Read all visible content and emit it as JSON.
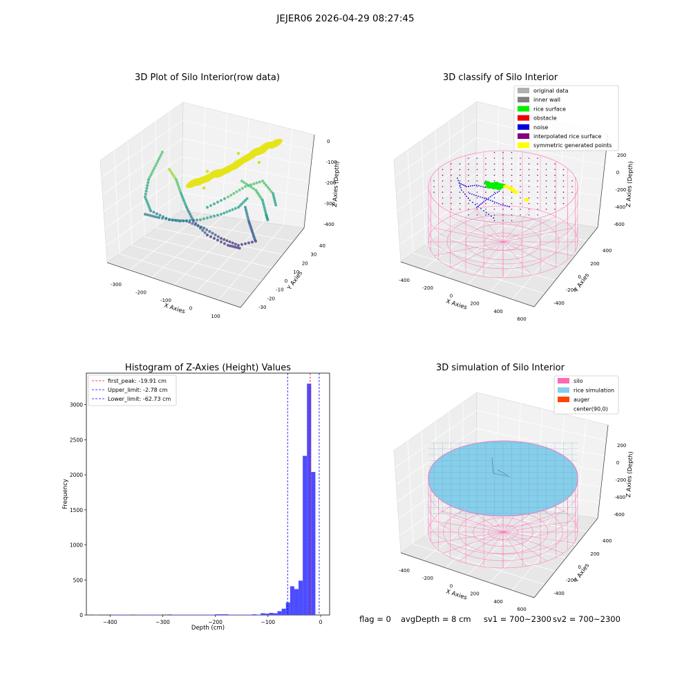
{
  "figure": {
    "suptitle": "JEJER06 2026-04-29 08:27:45"
  },
  "panels": {
    "raw": {
      "title": "3D Plot of Silo Interior(row data)",
      "xlabel": "X Axies",
      "ylabel": "Y Axies",
      "zlabel": "Z Axies (Depth)",
      "xticks": [
        "-300",
        "-200",
        "-100",
        "0",
        "100"
      ],
      "yticks": [
        "40",
        "30",
        "20",
        "10",
        "0",
        "-10",
        "-20",
        "-30"
      ],
      "zticks": [
        "0",
        "-100",
        "-200",
        "-300",
        "-400"
      ]
    },
    "classify": {
      "title": "3D classify of Silo Interior",
      "xlabel": "X Axies",
      "ylabel": "Y Axies",
      "zlabel": "Z Axies (Depth)",
      "xticks": [
        "-400",
        "-200",
        "0",
        "200",
        "400",
        "600"
      ],
      "yticks": [
        "400",
        "200",
        "0",
        "-200",
        "-400"
      ],
      "zticks": [
        "200",
        "0",
        "-200",
        "-400",
        "-600"
      ],
      "legend": [
        {
          "label": "original data",
          "color": "#b0b0b0"
        },
        {
          "label": "inner wall",
          "color": "#808080"
        },
        {
          "label": "rice surface",
          "color": "#00ee00"
        },
        {
          "label": "obstacle",
          "color": "#ee0000"
        },
        {
          "label": "noise",
          "color": "#0000dd"
        },
        {
          "label": "interpolated rice surface",
          "color": "#800080"
        },
        {
          "label": "symmetric generated points",
          "color": "#ffff00"
        }
      ]
    },
    "simulation": {
      "title": "3D simulation of Silo Interior",
      "xlabel": "X Axies",
      "ylabel": "Y Axies",
      "zlabel": "Z Axies (Depth)",
      "xticks": [
        "-400",
        "-200",
        "0",
        "200",
        "400",
        "600"
      ],
      "yticks": [
        "400",
        "200",
        "0",
        "-200",
        "-400"
      ],
      "zticks": [
        "200",
        "0",
        "-200",
        "-400",
        "-600"
      ],
      "legend": [
        {
          "label": "silo",
          "color": "#ff69b4"
        },
        {
          "label": "rice simulation",
          "color": "#87ceeb"
        },
        {
          "label": "auger",
          "color": "#ff4500"
        },
        {
          "label": "center(90,0)",
          "color": null
        }
      ]
    }
  },
  "status": {
    "flag": "flag = 0",
    "avg_depth": "avgDepth = 8 cm",
    "sv1": "sv1 = 700~2300",
    "sv2": "sv2 = 700~2300"
  },
  "chart_data": [
    {
      "type": "scatter",
      "title": "3D Plot of Silo Interior(row data)",
      "xlabel": "X Axies",
      "ylabel": "Y Axies",
      "zlabel": "Z Axies (Depth)",
      "xlim": [
        -350,
        150
      ],
      "ylim": [
        -35,
        40
      ],
      "zlim": [
        -450,
        20
      ],
      "colormap": "viridis"
    },
    {
      "type": "scatter",
      "title": "3D classify of Silo Interior",
      "xlabel": "X Axies",
      "ylabel": "Y Axies",
      "zlabel": "Z Axies (Depth)",
      "xlim": [
        -450,
        650
      ],
      "ylim": [
        -450,
        450
      ],
      "zlim": [
        -700,
        250
      ],
      "series": [
        {
          "name": "original data"
        },
        {
          "name": "inner wall"
        },
        {
          "name": "rice surface"
        },
        {
          "name": "obstacle"
        },
        {
          "name": "noise"
        },
        {
          "name": "interpolated rice surface"
        },
        {
          "name": "symmetric generated points"
        }
      ]
    },
    {
      "type": "bar",
      "title": "Histogram of Z-Axies (Height) Values",
      "xlabel": "Depth (cm)",
      "ylabel": "Frequency",
      "xlim": [
        -445,
        17
      ],
      "ylim": [
        0,
        3450
      ],
      "xticks": [
        -400,
        -300,
        -200,
        -100,
        0
      ],
      "yticks": [
        0,
        500,
        1000,
        1500,
        2000,
        2500,
        3000
      ],
      "bar_color": "#4d4dff",
      "bins": [
        {
          "x0": -430,
          "x1": -422,
          "count": 5
        },
        {
          "x0": -395,
          "x1": -362,
          "count": 5
        },
        {
          "x0": -352,
          "x1": -302,
          "count": 5
        },
        {
          "x0": -290,
          "x1": -282,
          "count": 8
        },
        {
          "x0": -282,
          "x1": -200,
          "count": 5
        },
        {
          "x0": -200,
          "x1": -175,
          "count": 10
        },
        {
          "x0": -175,
          "x1": -130,
          "count": 5
        },
        {
          "x0": -130,
          "x1": -122,
          "count": 10
        },
        {
          "x0": -122,
          "x1": -114,
          "count": 5
        },
        {
          "x0": -114,
          "x1": -106,
          "count": 25
        },
        {
          "x0": -106,
          "x1": -98,
          "count": 20
        },
        {
          "x0": -98,
          "x1": -90,
          "count": 30
        },
        {
          "x0": -90,
          "x1": -82,
          "count": 25
        },
        {
          "x0": -82,
          "x1": -74,
          "count": 55
        },
        {
          "x0": -74,
          "x1": -66,
          "count": 90
        },
        {
          "x0": -66,
          "x1": -58,
          "count": 180
        },
        {
          "x0": -58,
          "x1": -50,
          "count": 410
        },
        {
          "x0": -50,
          "x1": -42,
          "count": 370
        },
        {
          "x0": -42,
          "x1": -34,
          "count": 490
        },
        {
          "x0": -34,
          "x1": -26,
          "count": 2270
        },
        {
          "x0": -26,
          "x1": -18,
          "count": 3300
        },
        {
          "x0": -18,
          "x1": -10,
          "count": 2040
        }
      ],
      "lines": [
        {
          "label": "first_peak: -19.91 cm",
          "x": -19.91,
          "color": "#ff0000"
        },
        {
          "label": "Upper_limit: -2.78 cm",
          "x": -2.78,
          "color": "#0000ff"
        },
        {
          "label": "Lower_limit: -62.73 cm",
          "x": -62.73,
          "color": "#0000ff"
        }
      ]
    },
    {
      "type": "scatter",
      "title": "3D simulation of Silo Interior",
      "xlabel": "X Axies",
      "ylabel": "Y Axies",
      "zlabel": "Z Axies (Depth)",
      "xlim": [
        -450,
        650
      ],
      "ylim": [
        -450,
        450
      ],
      "zlim": [
        -700,
        250
      ],
      "series": [
        {
          "name": "silo"
        },
        {
          "name": "rice simulation"
        },
        {
          "name": "auger"
        },
        {
          "name": "center(90,0)"
        }
      ]
    }
  ]
}
